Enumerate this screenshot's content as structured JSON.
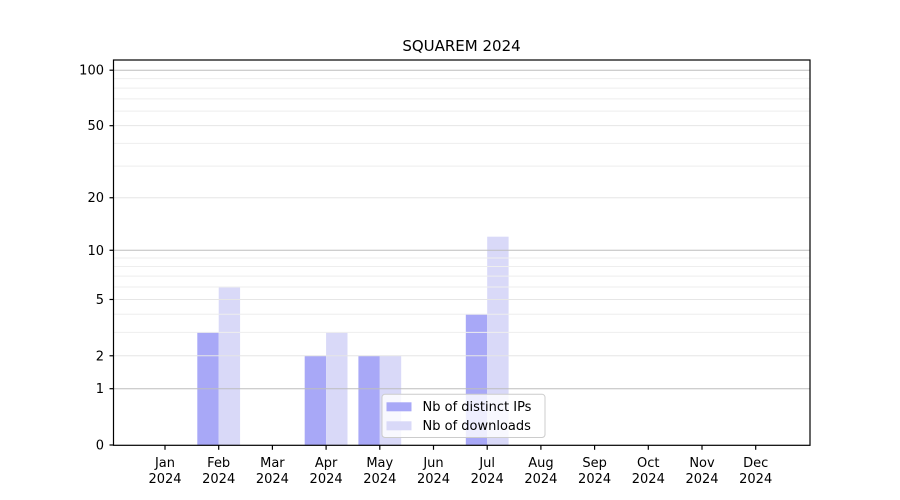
{
  "chart_data": {
    "type": "bar",
    "title": "SQUAREM 2024",
    "xlabel": "",
    "ylabel": "",
    "year_label": "2024",
    "categories": [
      "Jan",
      "Feb",
      "Mar",
      "Apr",
      "May",
      "Jun",
      "Jul",
      "Aug",
      "Sep",
      "Oct",
      "Nov",
      "Dec"
    ],
    "series": [
      {
        "name": "Nb of distinct IPs",
        "color": "#a8a8f7",
        "values": [
          0,
          3,
          0,
          2,
          2,
          0,
          4,
          0,
          0,
          0,
          0,
          0
        ]
      },
      {
        "name": "Nb of downloads",
        "color": "#d9d9f8",
        "values": [
          0,
          6,
          0,
          3,
          2,
          0,
          12,
          0,
          0,
          0,
          0,
          0
        ]
      }
    ],
    "yscale": "log10(1+value), symlog-like with 0 shown",
    "ytick_labels": [
      "0",
      "1",
      "2",
      "5",
      "10",
      "20",
      "50",
      "100"
    ],
    "ytick_values": [
      0,
      1,
      2,
      5,
      10,
      20,
      50,
      100
    ],
    "ylim": [
      0,
      114
    ],
    "grid": {
      "on": true,
      "drawn_above_bars": true,
      "major_values": [
        1,
        10,
        100
      ],
      "major_color": "#bdbdbd",
      "mid_values": [
        2,
        5,
        20,
        50
      ],
      "mid_color": "#e6e6e6",
      "minor_values": [
        3,
        4,
        6,
        7,
        8,
        9,
        30,
        40,
        60,
        70,
        80,
        90
      ],
      "minor_color": "#eeeeee"
    },
    "legend": {
      "position": "lower center (inside plot)",
      "background": "rgba(255,255,255,0.8)",
      "border_color": "#cccccc"
    },
    "axis_color": "#000000",
    "background_color": "#ffffff"
  }
}
